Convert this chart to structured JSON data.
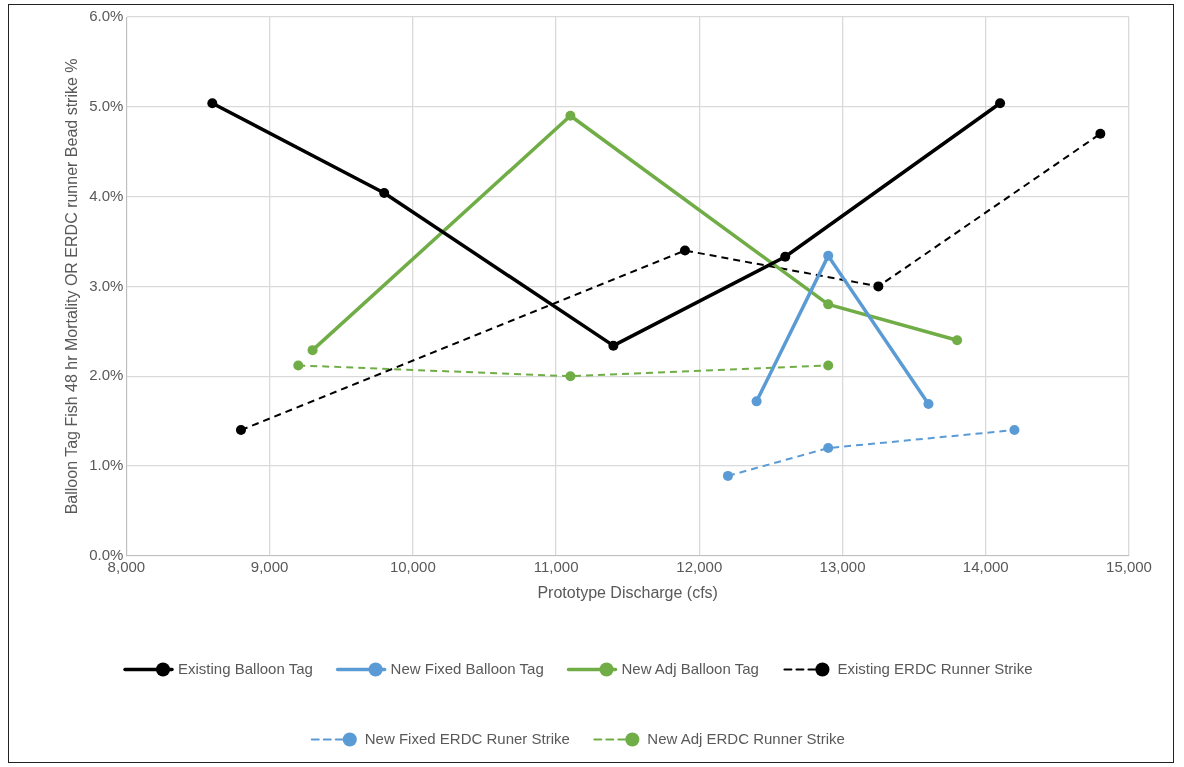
{
  "chart_data": {
    "type": "line",
    "xlabel": "Prototype Discharge (cfs)",
    "ylabel": "Balloon Tag Fish 48 hr Mortality OR ERDC runner Bead strike %",
    "xlim": [
      8000,
      15000
    ],
    "xticks": [
      {
        "value": 8000,
        "label": "8,000"
      },
      {
        "value": 9000,
        "label": "9,000"
      },
      {
        "value": 10000,
        "label": "10,000"
      },
      {
        "value": 11000,
        "label": "11,000"
      },
      {
        "value": 12000,
        "label": "12,000"
      },
      {
        "value": 13000,
        "label": "13,000"
      },
      {
        "value": 14000,
        "label": "14,000"
      },
      {
        "value": 15000,
        "label": "15,000"
      }
    ],
    "ylim": [
      0,
      6
    ],
    "yticks": [
      {
        "value": 0,
        "label": "0.0%"
      },
      {
        "value": 1,
        "label": "1.0%"
      },
      {
        "value": 2,
        "label": "2.0%"
      },
      {
        "value": 3,
        "label": "3.0%"
      },
      {
        "value": 4,
        "label": "4.0%"
      },
      {
        "value": 5,
        "label": "5.0%"
      },
      {
        "value": 6,
        "label": "6.0%"
      }
    ],
    "grid": true,
    "legend": "bottom",
    "marker": "circle",
    "series": [
      {
        "name": "Existing Balloon Tag",
        "color": "#000000",
        "line_style": "solid",
        "x": [
          8600,
          9800,
          11400,
          12600,
          14100
        ],
        "values": [
          5.04,
          4.04,
          2.34,
          3.33,
          5.04
        ]
      },
      {
        "name": "New Fixed Balloon Tag",
        "color": "#5b9bd5",
        "line_style": "solid",
        "x": [
          12400,
          12900,
          13600
        ],
        "values": [
          1.72,
          3.34,
          1.69
        ]
      },
      {
        "name": "New Adj Balloon Tag",
        "color": "#70ad47",
        "line_style": "solid",
        "x": [
          9300,
          11100,
          12900,
          13800
        ],
        "values": [
          2.29,
          4.9,
          2.8,
          2.4
        ]
      },
      {
        "name": "Existing ERDC Runner Strike",
        "color": "#000000",
        "line_style": "dashed",
        "x": [
          8800,
          11900,
          13250,
          14800
        ],
        "values": [
          1.4,
          3.4,
          3.0,
          4.7
        ]
      },
      {
        "name": "New Fixed ERDC Runer Strike",
        "color": "#5b9bd5",
        "line_style": "dashed",
        "x": [
          12200,
          12900,
          14200
        ],
        "values": [
          0.89,
          1.2,
          1.4
        ]
      },
      {
        "name": "New Adj ERDC Runner Strike",
        "color": "#70ad47",
        "line_style": "dashed",
        "x": [
          9200,
          11100,
          12900
        ],
        "values": [
          2.12,
          2.0,
          2.12
        ]
      }
    ]
  }
}
